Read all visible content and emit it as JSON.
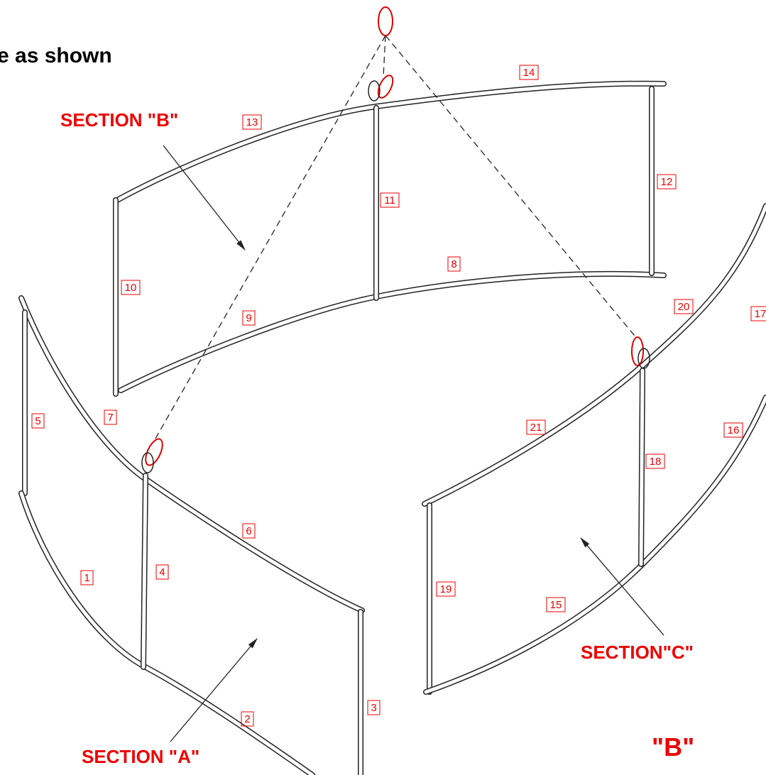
{
  "header": {
    "text": "e as shown"
  },
  "sections": [
    {
      "label": "SECTION \"B\""
    },
    {
      "label": "SECTION\"C\""
    },
    {
      "label": "SECTION \"A\""
    },
    {
      "label": "\"B\""
    }
  ],
  "parts": [
    {
      "label": "14"
    },
    {
      "label": "13"
    },
    {
      "label": "12"
    },
    {
      "label": "11"
    },
    {
      "label": "10"
    },
    {
      "label": "8"
    },
    {
      "label": "9"
    },
    {
      "label": "20"
    },
    {
      "label": "17"
    },
    {
      "label": "5"
    },
    {
      "label": "7"
    },
    {
      "label": "21"
    },
    {
      "label": "16"
    },
    {
      "label": "18"
    },
    {
      "label": "6"
    },
    {
      "label": "4"
    },
    {
      "label": "1"
    },
    {
      "label": "19"
    },
    {
      "label": "15"
    },
    {
      "label": "3"
    },
    {
      "label": "2"
    }
  ]
}
